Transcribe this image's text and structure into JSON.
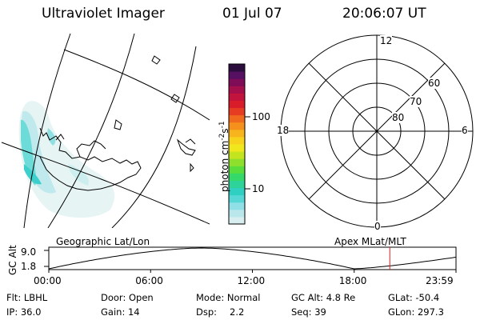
{
  "header": {
    "instrument": "Ultraviolet Imager",
    "date": "01 Jul 07",
    "time": "20:06:07 UT"
  },
  "colorbar": {
    "unit_base": "photon cm",
    "unit_exp_cm": "-2",
    "unit_s": "s",
    "unit_exp_s": "-1",
    "tick_100": "100",
    "tick_10": "10",
    "colors": [
      "#d8eef0",
      "#b9e7ec",
      "#8fdfe6",
      "#56d7d6",
      "#2fcfc2",
      "#2ed39a",
      "#35d96a",
      "#58dd3c",
      "#8fe02c",
      "#c4e420",
      "#f0e81c",
      "#f7d21c",
      "#f8b41c",
      "#f5901c",
      "#ef6a1e",
      "#e53c22",
      "#d81c2a",
      "#c2143c",
      "#a40f4c",
      "#7e0c56",
      "#561062",
      "#2c0e3e"
    ]
  },
  "polar": {
    "mlt_top": "12",
    "mlt_bottom": "0",
    "mlt_left": "18",
    "mlt_right": "6",
    "lat_60": "60",
    "lat_70": "70",
    "lat_80": "80"
  },
  "timeline": {
    "left_label": "Geographic Lat/Lon",
    "right_label": "Apex MLat/MLT",
    "y_axis_label": "GC Alt",
    "y_max": "9.0",
    "y_min": "1.8",
    "x_ticks": [
      "00:00",
      "06:00",
      "12:00",
      "18:00",
      "23:59"
    ],
    "marker_time": "20:06",
    "marker_color": "#e02020"
  },
  "status": {
    "flt": "Flt: LBHL",
    "ip": "IP: 36.0",
    "door": "Door: Open",
    "gain": "Gain: 14",
    "mode": "Mode: Normal",
    "dsp_label": "Dsp:",
    "dsp_value": "2.2",
    "gc_alt": "GC Alt: 4.8 Re",
    "seq": "Seq: 39",
    "glat": "GLat: -50.4",
    "glon": "GLon: 297.3"
  }
}
